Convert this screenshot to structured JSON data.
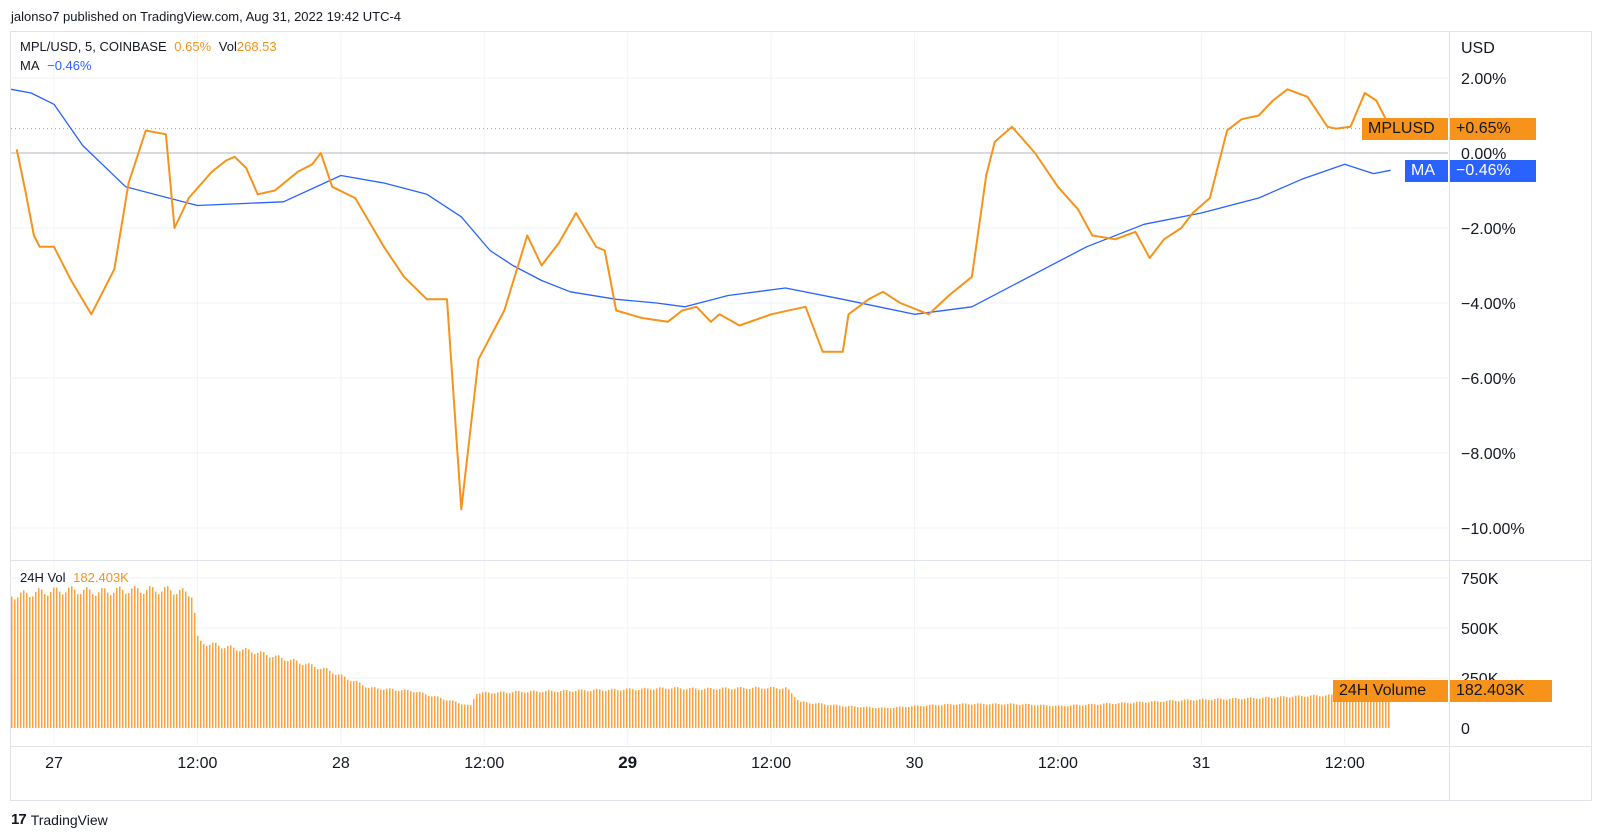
{
  "header": {
    "publisher_line": "jalonso7 published on TradingView.com, Aug 31, 2022 19:42 UTC-4"
  },
  "legend": {
    "symbol": "MPL/USD, 5, COINBASE",
    "change": "0.65%",
    "vol_label": "Vol",
    "vol_value": "268.53",
    "ma_label": "MA",
    "ma_value": "−0.46%"
  },
  "volume_legend": {
    "label": "24H Vol",
    "value": "182.403K"
  },
  "tags": {
    "price_name": "MPLUSD",
    "price_value": "+0.65%",
    "ma_name": "MA",
    "ma_value": "−0.46%",
    "vol_name": "24H Volume",
    "vol_value": "182.403K"
  },
  "footer": {
    "logo_mark": "17",
    "logo_text": "TradingView"
  },
  "colors": {
    "price": "#f7931a",
    "ma": "#2962ff",
    "grid": "#f0f3fa",
    "zero_line": "#b2b5be"
  },
  "chart_data": [
    {
      "type": "line",
      "title": "MPL/USD, 5, COINBASE",
      "y_unit": "USD",
      "ylim": [
        -10.6,
        2.0
      ],
      "y_ticks": [
        "2.00%",
        "0.00%",
        "−2.00%",
        "−4.00%",
        "−6.00%",
        "−8.00%",
        "−10.00%"
      ],
      "x_ticks": [
        "27",
        "12:00",
        "28",
        "12:00",
        "29",
        "12:00",
        "30",
        "12:00",
        "31",
        "12:00"
      ],
      "bold_x_tick": "29",
      "x_range_days": [
        -0.15,
        4.86
      ],
      "series": [
        {
          "name": "MPL/USD",
          "x": [
            -0.13,
            -0.1,
            -0.07,
            -0.05,
            0.0,
            0.06,
            0.13,
            0.21,
            0.26,
            0.32,
            0.39,
            0.42,
            0.47,
            0.55,
            0.6,
            0.63,
            0.67,
            0.71,
            0.77,
            0.85,
            0.9,
            0.93,
            0.97,
            1.05,
            1.15,
            1.22,
            1.3,
            1.37,
            1.42,
            1.48,
            1.57,
            1.65,
            1.7,
            1.76,
            1.82,
            1.89,
            1.92,
            1.96,
            2.05,
            2.14,
            2.19,
            2.24,
            2.29,
            2.32,
            2.39,
            2.5,
            2.62,
            2.68,
            2.75,
            2.77,
            2.84,
            2.89,
            2.95,
            3.05,
            3.12,
            3.2,
            3.25,
            3.28,
            3.34,
            3.42,
            3.5,
            3.57,
            3.62,
            3.7,
            3.77,
            3.82,
            3.87,
            3.93,
            3.97,
            4.03,
            4.09,
            4.14,
            4.2,
            4.25,
            4.3,
            4.37,
            4.44,
            4.47,
            4.52,
            4.57,
            4.61,
            4.66
          ],
          "values": [
            0.1,
            -1.0,
            -2.2,
            -2.5,
            -2.5,
            -3.4,
            -4.3,
            -3.1,
            -0.8,
            0.6,
            0.5,
            -2.0,
            -1.2,
            -0.5,
            -0.2,
            -0.1,
            -0.4,
            -1.1,
            -1.0,
            -0.5,
            -0.3,
            0.0,
            -0.9,
            -1.2,
            -2.5,
            -3.3,
            -3.9,
            -3.9,
            -9.5,
            -5.5,
            -4.2,
            -2.2,
            -3.0,
            -2.4,
            -1.6,
            -2.5,
            -2.6,
            -4.2,
            -4.4,
            -4.5,
            -4.2,
            -4.1,
            -4.5,
            -4.3,
            -4.6,
            -4.3,
            -4.1,
            -5.3,
            -5.3,
            -4.3,
            -3.9,
            -3.7,
            -4.0,
            -4.3,
            -3.8,
            -3.3,
            -0.6,
            0.3,
            0.7,
            0.0,
            -0.9,
            -1.5,
            -2.2,
            -2.3,
            -2.1,
            -2.8,
            -2.3,
            -2.0,
            -1.6,
            -1.2,
            0.6,
            0.9,
            1.0,
            1.4,
            1.7,
            1.5,
            0.7,
            0.65,
            0.7,
            1.6,
            1.4,
            0.65
          ]
        },
        {
          "name": "MA",
          "x": [
            -0.15,
            -0.08,
            0.0,
            0.1,
            0.25,
            0.5,
            0.8,
            1.0,
            1.15,
            1.3,
            1.42,
            1.52,
            1.6,
            1.7,
            1.8,
            1.96,
            2.1,
            2.2,
            2.35,
            2.55,
            2.75,
            3.0,
            3.2,
            3.4,
            3.6,
            3.8,
            4.0,
            4.2,
            4.35,
            4.5,
            4.6,
            4.66
          ],
          "values": [
            1.7,
            1.6,
            1.3,
            0.2,
            -0.9,
            -1.4,
            -1.3,
            -0.6,
            -0.8,
            -1.1,
            -1.7,
            -2.6,
            -3.0,
            -3.4,
            -3.7,
            -3.9,
            -4.0,
            -4.1,
            -3.8,
            -3.6,
            -3.9,
            -4.3,
            -4.1,
            -3.3,
            -2.5,
            -1.9,
            -1.6,
            -1.2,
            -0.7,
            -0.3,
            -0.55,
            -0.46
          ]
        }
      ]
    },
    {
      "type": "bar",
      "title": "24H Vol",
      "ylim": [
        0,
        800
      ],
      "y_unit_label": "K",
      "y_ticks": [
        "750K",
        "500K",
        "250K",
        "0"
      ],
      "x_range_days": [
        -0.15,
        4.86
      ],
      "x": [
        -0.15,
        -0.05,
        0.05,
        0.15,
        0.25,
        0.4,
        0.48,
        0.5,
        0.58,
        0.7,
        0.85,
        0.95,
        1.1,
        1.25,
        1.45,
        1.47,
        1.6,
        1.75,
        1.9,
        2.05,
        2.15,
        2.25,
        2.4,
        2.55,
        2.6,
        2.75,
        2.9,
        3.0,
        3.15,
        3.35,
        3.5,
        3.65,
        3.8,
        3.95,
        4.2,
        4.35,
        4.5,
        4.66,
        4.86
      ],
      "values": [
        660,
        680,
        690,
        680,
        690,
        690,
        670,
        430,
        410,
        380,
        330,
        290,
        200,
        185,
        110,
        175,
        180,
        185,
        190,
        195,
        200,
        195,
        200,
        200,
        130,
        110,
        100,
        110,
        120,
        120,
        110,
        120,
        130,
        140,
        150,
        160,
        165,
        182,
        182
      ]
    }
  ]
}
